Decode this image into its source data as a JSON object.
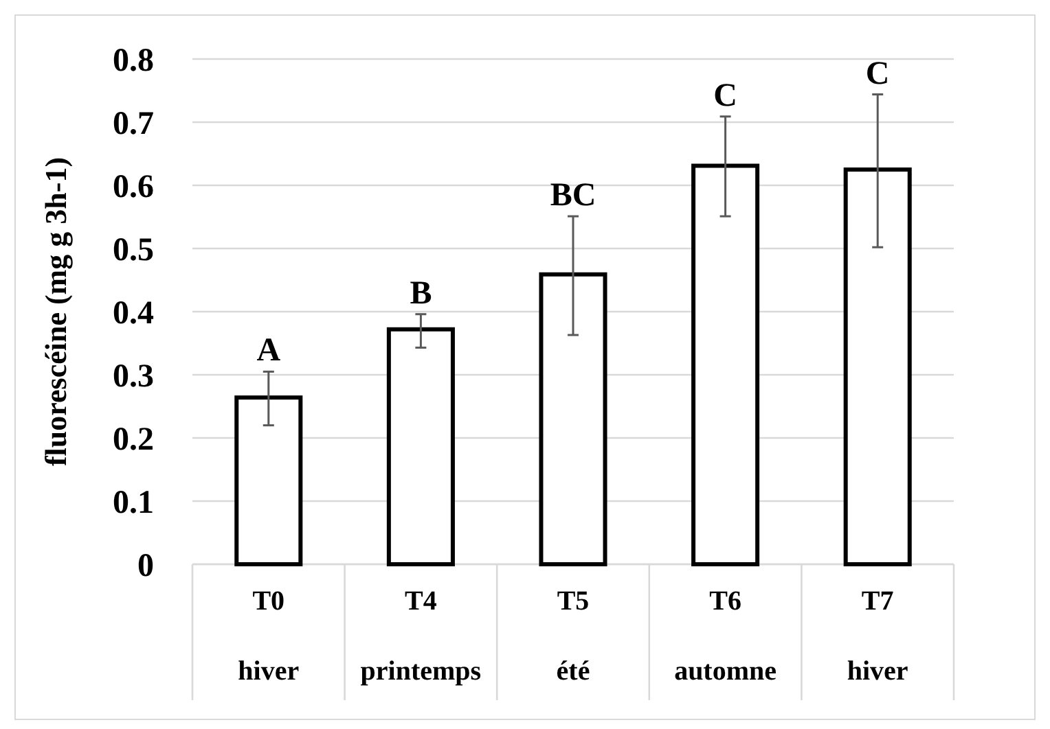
{
  "chart_data": {
    "type": "bar",
    "ylabel": "fluorescéine (mg g 3h-1)",
    "categories": [
      "T0\nhiver",
      "T4\nprintemps",
      "T5\nété",
      "T6\nautomne",
      "T7\nhiver"
    ],
    "values": [
      0.264,
      0.372,
      0.459,
      0.631,
      0.625
    ],
    "errors": [
      [
        0.22,
        0.305
      ],
      [
        0.343,
        0.396
      ],
      [
        0.363,
        0.551
      ],
      [
        0.551,
        0.709
      ],
      [
        0.502,
        0.744
      ]
    ],
    "color": "#ffffff",
    "ylim": [
      0,
      0.8
    ],
    "yticks": [
      0,
      0.1,
      0.2,
      0.3,
      0.4,
      0.5,
      0.6,
      0.7,
      0.8
    ],
    "grid": "y",
    "annotations": [
      {
        "text": "A",
        "x": "T0\nhiver",
        "y": 0.305
      },
      {
        "text": "B",
        "x": "T4\nprintemps",
        "y": 0.396
      },
      {
        "text": "BC",
        "x": "T5\nété",
        "y": 0.551
      },
      {
        "text": "C",
        "x": "T6\nautomne",
        "y": 0.709
      },
      {
        "text": "C",
        "x": "T7\nhiver",
        "y": 0.744
      }
    ]
  }
}
